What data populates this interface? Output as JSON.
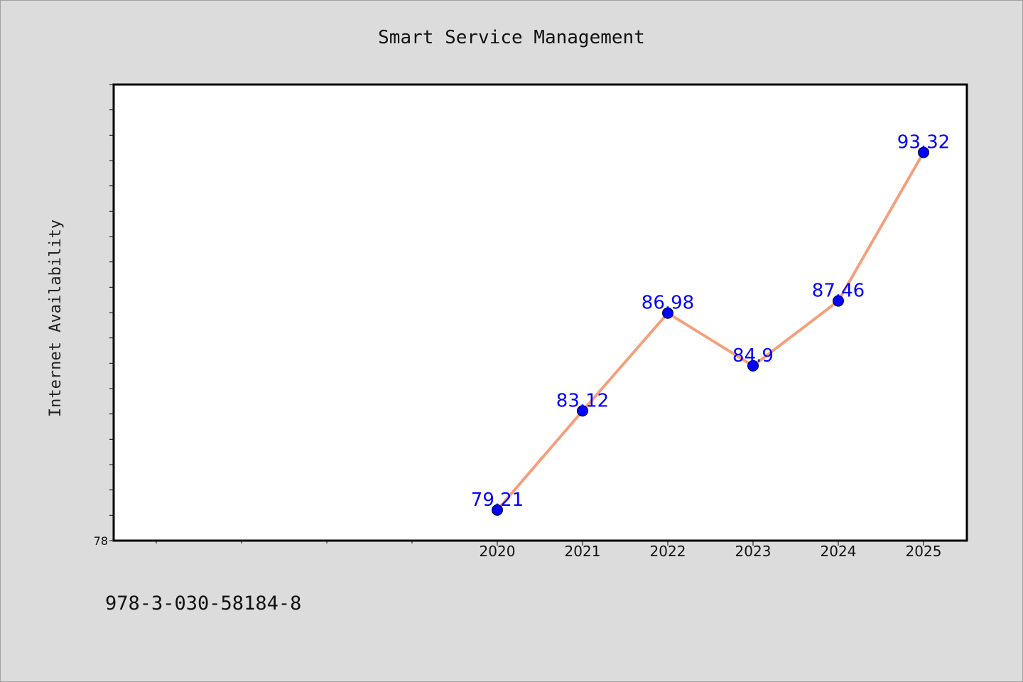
{
  "chart_data": {
    "type": "line",
    "title": "Smart Service Management",
    "xlabel": "",
    "ylabel": "Internet Availability",
    "categories": [
      "2020",
      "2021",
      "2022",
      "2023",
      "2024",
      "2025"
    ],
    "series": [
      {
        "values": [
          79.21,
          83.12,
          86.98,
          84.9,
          87.46,
          93.32
        ],
        "labels": [
          "79.21",
          "83.12",
          "86.98",
          "84.9",
          "87.46",
          "93.32"
        ]
      }
    ],
    "ylim": [
      78,
      96
    ],
    "y_tick_labels": [
      "78"
    ],
    "grid": false,
    "legend": "none",
    "colors": {
      "line": "#f4a07c",
      "marker": "#0000ff",
      "data_label": "#0000ff",
      "plot_background": "#ffffff",
      "figure_background": "#dcdcdc"
    }
  },
  "footer": {
    "text": "978-3-030-58184-8"
  }
}
